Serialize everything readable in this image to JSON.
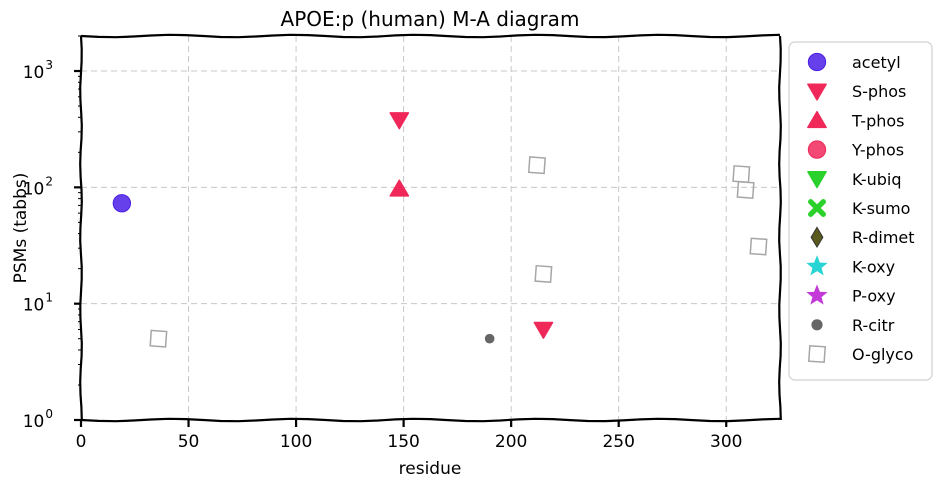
{
  "chart_data": {
    "type": "scatter",
    "title": "APOE:p (human) M-A diagram",
    "xlabel": "residue",
    "ylabel": "PSMs (tabbs)",
    "xlim": [
      0,
      325
    ],
    "ylim": [
      1,
      2000
    ],
    "yscale": "log",
    "grid": true,
    "legend_position": "outside-right",
    "x_ticks": [
      0,
      50,
      100,
      150,
      200,
      250,
      300
    ],
    "y_ticks": [
      {
        "value": 1,
        "base": "10",
        "exp": "0"
      },
      {
        "value": 10,
        "base": "10",
        "exp": "1"
      },
      {
        "value": 100,
        "base": "10",
        "exp": "2"
      },
      {
        "value": 1000,
        "base": "10",
        "exp": "3"
      }
    ],
    "series": [
      {
        "name": "acetyl",
        "marker": "circle",
        "color": "#4b1fe6",
        "points": [
          {
            "x": 19,
            "y": 73
          }
        ]
      },
      {
        "name": "S-phos",
        "marker": "triangle-down",
        "color": "#f0285a",
        "points": [
          {
            "x": 148,
            "y": 380
          },
          {
            "x": 215,
            "y": 6
          }
        ]
      },
      {
        "name": "T-phos",
        "marker": "triangle-up",
        "color": "#f0285a",
        "points": [
          {
            "x": 148,
            "y": 97
          }
        ]
      },
      {
        "name": "Y-phos",
        "marker": "circle",
        "color": "#f0285a",
        "points": []
      },
      {
        "name": "K-ubiq",
        "marker": "triangle-down",
        "color": "#2bd12b",
        "points": []
      },
      {
        "name": "K-sumo",
        "marker": "x",
        "color": "#2bd12b",
        "points": []
      },
      {
        "name": "R-dimet",
        "marker": "diamond",
        "color": "#5b5a1e",
        "points": []
      },
      {
        "name": "K-oxy",
        "marker": "star",
        "color": "#28d4d4",
        "points": []
      },
      {
        "name": "P-oxy",
        "marker": "star",
        "color": "#c33ad9",
        "points": []
      },
      {
        "name": "R-citr",
        "marker": "dot",
        "color": "#666666",
        "points": [
          {
            "x": 190,
            "y": 5
          }
        ]
      },
      {
        "name": "O-glyco",
        "marker": "square-open",
        "color": "#a6a6a6",
        "points": [
          {
            "x": 36,
            "y": 5
          },
          {
            "x": 212,
            "y": 155
          },
          {
            "x": 215,
            "y": 18
          },
          {
            "x": 307,
            "y": 130
          },
          {
            "x": 309,
            "y": 95
          },
          {
            "x": 315,
            "y": 31
          }
        ]
      }
    ]
  }
}
